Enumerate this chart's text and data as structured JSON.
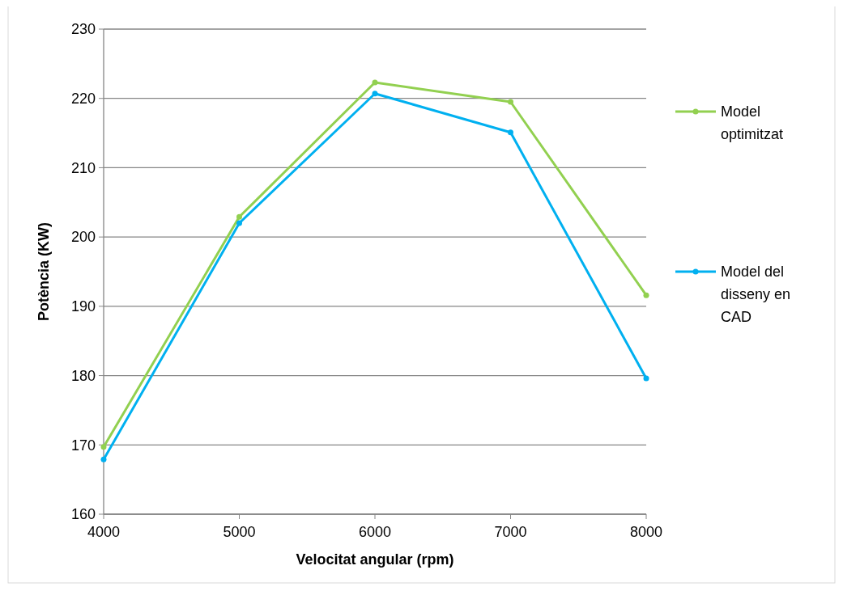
{
  "chart_data": {
    "type": "line",
    "xlabel": "Velocitat angular (rpm)",
    "ylabel": "Potència (KW)",
    "x": [
      4000,
      5000,
      6000,
      7000,
      8000
    ],
    "series": [
      {
        "name": "Model optimitzat",
        "color": "#92d050",
        "values": [
          169.7,
          202.9,
          222.3,
          219.5,
          191.6
        ]
      },
      {
        "name": "Model del disseny en CAD",
        "color": "#00b0f0",
        "values": [
          167.9,
          202,
          220.7,
          215.1,
          179.6
        ]
      }
    ],
    "xlim": [
      4000,
      8000
    ],
    "xticks": [
      4000,
      5000,
      6000,
      7000,
      8000
    ],
    "ylim": [
      160,
      230
    ],
    "yticks": [
      160,
      170,
      180,
      190,
      200,
      210,
      220,
      230
    ],
    "grid": "y",
    "legend": "right",
    "marker": "circle",
    "line_style": "solid"
  }
}
